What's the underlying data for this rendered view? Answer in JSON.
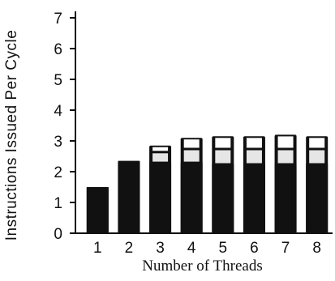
{
  "chart_data": {
    "type": "bar",
    "categories": [
      "1",
      "2",
      "3",
      "4",
      "5",
      "6",
      "7",
      "8"
    ],
    "series": [
      {
        "values": [
          1.5,
          2.35,
          2.3,
          2.3,
          2.25,
          2.25,
          2.25,
          2.25
        ]
      },
      {
        "values": [
          0,
          0,
          0.35,
          0.45,
          0.5,
          0.5,
          0.5,
          0.5
        ]
      },
      {
        "values": [
          0,
          0,
          0.2,
          0.35,
          0.4,
          0.4,
          0.45,
          0.4
        ]
      }
    ],
    "totals": [
      1.5,
      2.35,
      2.85,
      3.1,
      3.15,
      3.15,
      3.2,
      3.15
    ],
    "xlabel": "Number of Threads",
    "ylabel": "Instructions Issued Per Cycle",
    "ylim": [
      0,
      7
    ],
    "yticks": [
      0,
      1,
      2,
      3,
      4,
      5,
      6,
      7
    ],
    "grid": false,
    "colors": {
      "bar_bottom": "#111111",
      "bar_middle": "#e6e6e6",
      "bar_top": "#ffffff",
      "text": "#111111"
    }
  }
}
